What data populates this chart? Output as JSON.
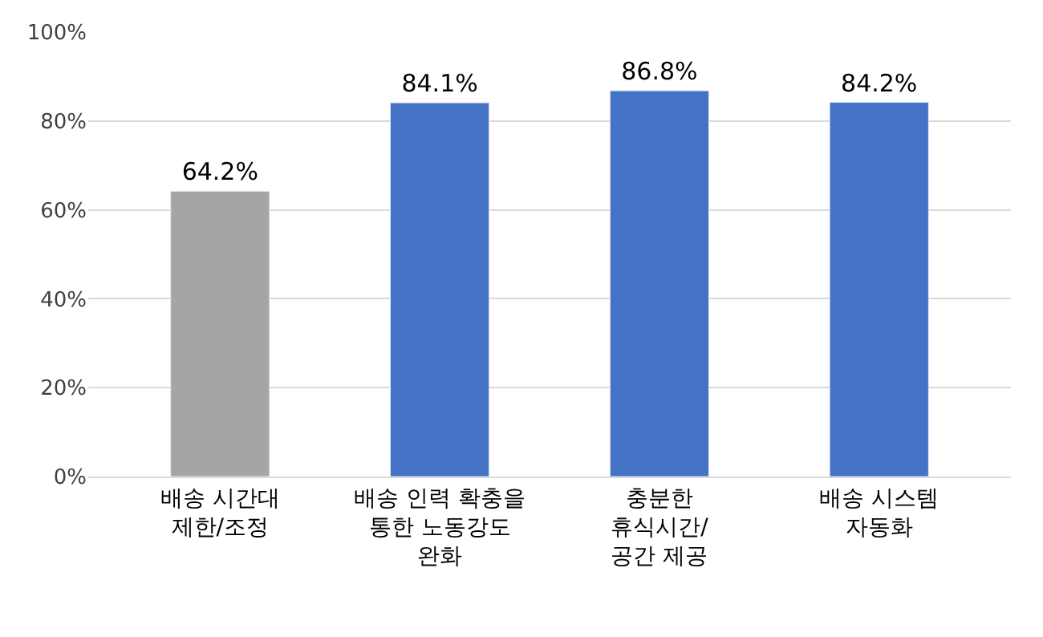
{
  "chart_data": {
    "type": "bar",
    "categories": [
      "배송 시간대\n제한/조정",
      "배송 인력 확충을\n통한 노동강도\n완화",
      "충분한\n휴식시간/\n공간 제공",
      "배송 시스템\n자동화"
    ],
    "values": [
      64.2,
      84.1,
      86.8,
      84.2
    ],
    "colors": [
      "#a5a5a5",
      "#4472c4",
      "#4472c4",
      "#4472c4"
    ],
    "value_labels": [
      "64.2%",
      "84.1%",
      "86.8%",
      "84.2%"
    ],
    "ylim": [
      0,
      100
    ],
    "yticks": [
      {
        "value": 0,
        "label": "0%"
      },
      {
        "value": 20,
        "label": "20%"
      },
      {
        "value": 40,
        "label": "40%"
      },
      {
        "value": 60,
        "label": "60%"
      },
      {
        "value": 80,
        "label": "80%"
      },
      {
        "value": 100,
        "label": "100%"
      }
    ],
    "grid": "y"
  }
}
